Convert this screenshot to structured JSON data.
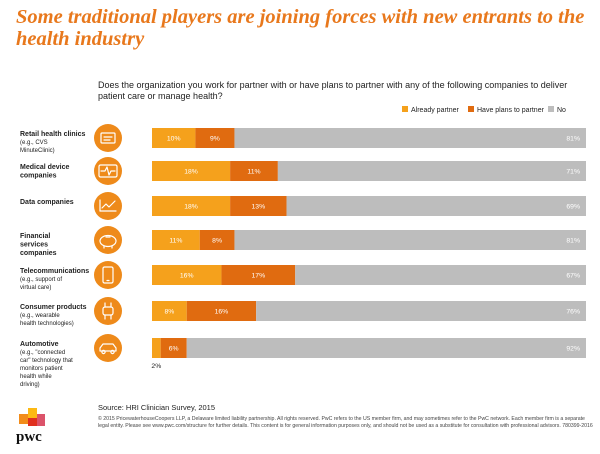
{
  "headline": "Some traditional players are joining forces with new entrants to the health industry",
  "question": "Does the organization you work for partner with or have plans to partner with any of the following companies to deliver patient care or manage health?",
  "source": "Source: HRI Clinician Survey, 2015",
  "footnote": "© 2015 PricewaterhouseCoopers LLP, a Delaware limited liability partnership. All rights reserved. PwC refers to the US member firm, and may sometimes refer to the PwC network. Each member firm is a separate legal entity. Please see www.pwc.com/structure for further details. This content is for general information purposes only, and should not be used as a substitute for consultation with professional advisors. 780399-2016",
  "logo_text": "pwc",
  "colors": {
    "already": "#f5a11c",
    "plans": "#e06b10",
    "no": "#bdbdbd",
    "headline": "#e8781c",
    "icon_circle": "#ee8a1a"
  },
  "chart_data": {
    "type": "bar",
    "stacked": true,
    "orientation": "horizontal",
    "xlim": [
      0,
      100
    ],
    "legend_position": "top-right",
    "grid": false,
    "categories": [
      {
        "label": "Retail health clinics",
        "sub": "(e.g., CVS MinuteClinic)",
        "icon": "id-card-icon"
      },
      {
        "label": "Medical device companies",
        "sub": "",
        "icon": "heart-monitor-icon"
      },
      {
        "label": "Data companies",
        "sub": "",
        "icon": "line-chart-icon"
      },
      {
        "label": "Financial services companies",
        "sub": "",
        "icon": "piggy-bank-icon"
      },
      {
        "label": "Telecommunications",
        "sub": "(e.g., support of virtual care)",
        "icon": "smartphone-icon"
      },
      {
        "label": "Consumer products",
        "sub": "(e.g., wearable health technologies)",
        "icon": "wearable-icon"
      },
      {
        "label": "Automotive",
        "sub": "(e.g., \"connected car\" technology that monitors patient health while driving)",
        "icon": "car-icon"
      }
    ],
    "series": [
      {
        "name": "Already partner",
        "values": [
          10,
          18,
          18,
          11,
          16,
          8,
          2
        ],
        "labels": [
          "10%",
          "18%",
          "18%",
          "11%",
          "16%",
          "8%",
          "2%"
        ]
      },
      {
        "name": "Have plans to partner",
        "values": [
          9,
          11,
          13,
          8,
          17,
          16,
          6
        ],
        "labels": [
          "9%",
          "11%",
          "13%",
          "8%",
          "17%",
          "16%",
          "6%"
        ]
      },
      {
        "name": "No",
        "values": [
          81,
          71,
          69,
          81,
          67,
          76,
          92
        ],
        "labels": [
          "81%",
          "71%",
          "69%",
          "81%",
          "67%",
          "76%",
          "92%"
        ]
      }
    ]
  }
}
